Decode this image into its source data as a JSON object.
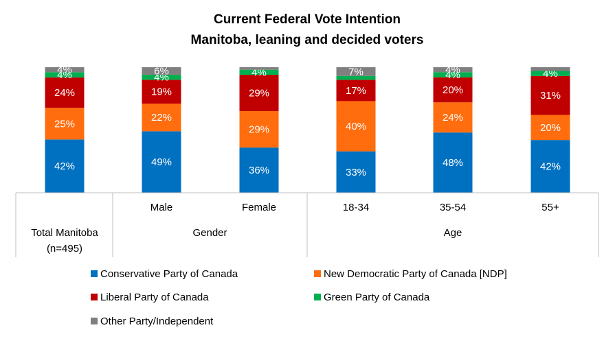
{
  "chart_data": {
    "type": "bar",
    "stacked": true,
    "title_line1": "Current Federal Vote Intention",
    "title_line2": "Manitoba, leaning and decided voters",
    "categories": [
      "Total Manitoba (n=495)",
      "Male",
      "Female",
      "18-34",
      "35-54",
      "55+"
    ],
    "group_labels": [
      "Gender",
      "Age"
    ],
    "series": [
      {
        "name": "Conservative Party of Canada",
        "color": "#0070C0",
        "values": [
          42,
          49,
          36,
          33,
          48,
          42
        ],
        "labels": [
          "42%",
          "49%",
          "36%",
          "33%",
          "48%",
          "42%"
        ]
      },
      {
        "name": "New Democratic Party of Canada [NDP]",
        "color": "#FF6D0E",
        "values": [
          25,
          22,
          29,
          40,
          24,
          20
        ],
        "labels": [
          "25%",
          "22%",
          "29%",
          "40%",
          "24%",
          "20%"
        ]
      },
      {
        "name": "Liberal Party of Canada",
        "color": "#C00000",
        "values": [
          24,
          19,
          29,
          17,
          20,
          31
        ],
        "labels": [
          "24%",
          "19%",
          "29%",
          "17%",
          "20%",
          "31%"
        ]
      },
      {
        "name": "Green Party of Canada",
        "color": "#00B050",
        "values": [
          4,
          4,
          4,
          3,
          4,
          4
        ],
        "labels": [
          "4%",
          "4%",
          "4%",
          "",
          "4%",
          "4%"
        ]
      },
      {
        "name": "Other Party/Independent",
        "color": "#7F7F7F",
        "values": [
          4,
          6,
          2,
          7,
          4,
          3
        ],
        "labels": [
          "4%",
          "6%",
          "",
          "7%",
          "4%",
          ""
        ]
      }
    ],
    "ylim": [
      0,
      100
    ],
    "grid": false,
    "legend_position": "bottom"
  }
}
